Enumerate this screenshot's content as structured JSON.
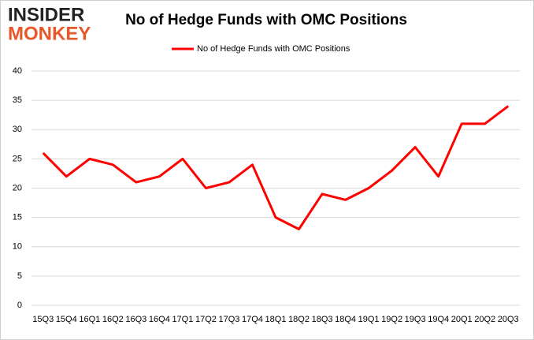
{
  "logo": {
    "line1": "INSIDER",
    "line2": "MONKEY"
  },
  "chart_data": {
    "type": "line",
    "title": "No of Hedge Funds with OMC Positions",
    "categories": [
      "15Q3",
      "15Q4",
      "16Q1",
      "16Q2",
      "16Q3",
      "16Q4",
      "17Q1",
      "17Q2",
      "17Q3",
      "17Q4",
      "18Q1",
      "18Q2",
      "18Q3",
      "18Q4",
      "19Q1",
      "19Q2",
      "19Q3",
      "19Q4",
      "20Q1",
      "20Q2",
      "20Q3"
    ],
    "series": [
      {
        "name": "No of Hedge Funds with OMC Positions",
        "color": "#ff0000",
        "values": [
          26,
          22,
          25,
          24,
          21,
          22,
          25,
          20,
          21,
          24,
          15,
          13,
          19,
          18,
          20,
          23,
          27,
          22,
          31,
          31,
          34
        ]
      }
    ],
    "ylim": [
      0,
      40
    ],
    "yticks": [
      0,
      5,
      10,
      15,
      20,
      25,
      30,
      35,
      40
    ],
    "grid": true,
    "legend": "top"
  }
}
